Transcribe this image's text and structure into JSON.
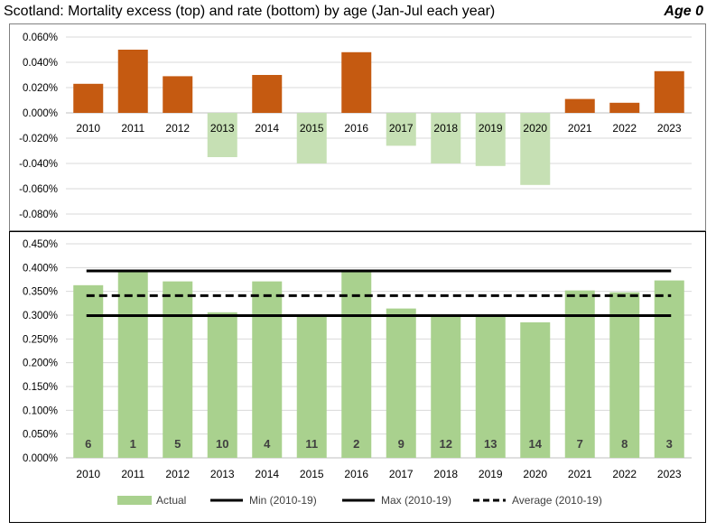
{
  "header": {
    "title": "Scotland: Mortality excess (top) and rate (bottom) by age (Jan-Jul each year)",
    "age_label": "Age 0"
  },
  "colors": {
    "excess_positive": "#C55A11",
    "excess_negative": "#C6E0B4",
    "actual_bar": "#A9D18E",
    "gridline": "#D9D9D9",
    "reference_line": "#000000"
  },
  "chart_data": [
    {
      "type": "bar",
      "panel": "top",
      "categories": [
        "2010",
        "2011",
        "2012",
        "2013",
        "2014",
        "2015",
        "2016",
        "2017",
        "2018",
        "2019",
        "2020",
        "2021",
        "2022",
        "2023"
      ],
      "values": [
        0.023,
        0.05,
        0.029,
        -0.035,
        0.03,
        -0.04,
        0.048,
        -0.026,
        -0.04,
        -0.042,
        -0.057,
        0.011,
        0.008,
        0.033
      ],
      "unit": "percent",
      "ylim": [
        -0.09,
        0.07
      ],
      "yticks": [
        "0.060%",
        "0.040%",
        "0.020%",
        "0.000%",
        "-0.020%",
        "-0.040%",
        "-0.060%",
        "-0.080%"
      ],
      "ytick_values": [
        0.06,
        0.04,
        0.02,
        0,
        -0.02,
        -0.04,
        -0.06,
        -0.08
      ],
      "grid": true,
      "legend": false
    },
    {
      "type": "bar",
      "panel": "bottom",
      "categories": [
        "2010",
        "2011",
        "2012",
        "2013",
        "2014",
        "2015",
        "2016",
        "2017",
        "2018",
        "2019",
        "2020",
        "2021",
        "2022",
        "2023"
      ],
      "series": [
        {
          "name": "Actual",
          "values": [
            0.363,
            0.393,
            0.371,
            0.306,
            0.371,
            0.299,
            0.393,
            0.314,
            0.299,
            0.299,
            0.285,
            0.352,
            0.348,
            0.373
          ]
        },
        {
          "name": "Min (2010-19)",
          "value": 0.299
        },
        {
          "name": "Max (2010-19)",
          "value": 0.393
        },
        {
          "name": "Average (2010-19)",
          "value": 0.341
        }
      ],
      "rank_labels": [
        "6",
        "1",
        "5",
        "10",
        "4",
        "11",
        "2",
        "9",
        "12",
        "13",
        "14",
        "7",
        "8",
        "3"
      ],
      "unit": "percent",
      "ylim": [
        0,
        0.45
      ],
      "yticks": [
        "0.450%",
        "0.400%",
        "0.350%",
        "0.300%",
        "0.250%",
        "0.200%",
        "0.150%",
        "0.100%",
        "0.050%",
        "0.000%"
      ],
      "ytick_values": [
        0.45,
        0.4,
        0.35,
        0.3,
        0.25,
        0.2,
        0.15,
        0.1,
        0.05,
        0
      ],
      "grid": true,
      "legend": "bottom"
    }
  ]
}
